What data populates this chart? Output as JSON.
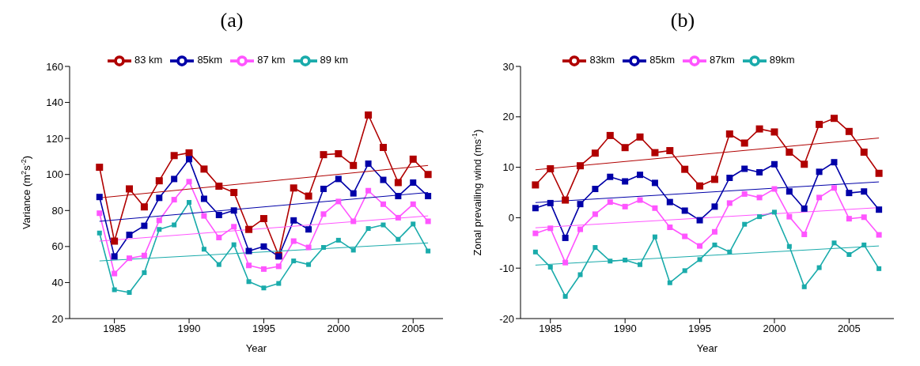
{
  "chart_data": [
    {
      "type": "line",
      "title": "(a)",
      "xlabel": "Year",
      "ylabel": "Variance (m$^{2}$s$^{-2}$)",
      "xlim": [
        1982,
        2007
      ],
      "xticks": [
        1985,
        1990,
        1995,
        2000,
        2005
      ],
      "ylim": [
        20,
        160
      ],
      "yticks": [
        20,
        40,
        60,
        80,
        100,
        120,
        140,
        160
      ],
      "legend": "top",
      "marker": "square",
      "x": [
        1984,
        1985,
        1986,
        1987,
        1988,
        1989,
        1990,
        1991,
        1992,
        1993,
        1994,
        1995,
        1996,
        1997,
        1998,
        1999,
        2000,
        2001,
        2002,
        2003,
        2004,
        2005,
        2006
      ],
      "series": [
        {
          "name": "83 km",
          "color": "#b00000",
          "values": [
            104,
            63,
            92,
            82,
            96.5,
            110.5,
            112,
            103,
            93.5,
            90,
            69.5,
            75.5,
            55,
            92.5,
            88,
            111,
            111.5,
            105,
            133,
            115,
            95.5,
            108.5,
            100
          ]
        },
        {
          "name": "85km",
          "color": "#0000a8",
          "values": [
            87.5,
            54.5,
            66.5,
            71.5,
            87,
            97.5,
            108.5,
            86.5,
            77.5,
            80,
            57.5,
            60,
            54.5,
            74.5,
            69.5,
            92,
            97.5,
            89.5,
            106,
            97,
            88,
            95.5,
            88
          ]
        },
        {
          "name": "87 km",
          "color": "#ff55ff",
          "values": [
            78.5,
            45,
            53.5,
            55,
            74.5,
            86,
            96,
            77,
            65,
            71,
            49.5,
            47.5,
            49,
            63,
            59.5,
            78,
            85,
            74,
            91,
            83.5,
            76,
            83.5,
            74
          ]
        },
        {
          "name": "89 km",
          "color": "#1aabab",
          "values": [
            67.5,
            36,
            34.5,
            45.5,
            69.5,
            72,
            84.5,
            58.5,
            50,
            61,
            40.5,
            37,
            39.5,
            52,
            50,
            59.5,
            63.5,
            58,
            70,
            72,
            64,
            72.5,
            57.5
          ]
        },
        {
          "type": "line",
          "marker": "none",
          "color": "#b00000",
          "x": [
            1984,
            2006
          ],
          "values": [
            87,
            105
          ]
        },
        {
          "type": "line",
          "marker": "none",
          "color": "#0000a8",
          "x": [
            1984,
            2006
          ],
          "values": [
            74,
            90
          ]
        },
        {
          "type": "line",
          "marker": "none",
          "color": "#ff55ff",
          "x": [
            1984,
            2006
          ],
          "values": [
            63,
            77
          ]
        },
        {
          "type": "line",
          "marker": "none",
          "color": "#1aabab",
          "x": [
            1984,
            2006
          ],
          "values": [
            52,
            62
          ]
        }
      ]
    },
    {
      "type": "line",
      "title": "(b)",
      "xlabel": "Year",
      "ylabel": "Zonal prevailing wind (ms$^{-1}$)",
      "xlim": [
        1983,
        2008
      ],
      "xticks": [
        1985,
        1990,
        1995,
        2000,
        2005
      ],
      "ylim": [
        -20,
        30
      ],
      "yticks": [
        -20,
        -10,
        0,
        10,
        20,
        30
      ],
      "legend": "top",
      "marker": "square",
      "x": [
        1984,
        1985,
        1986,
        1987,
        1988,
        1989,
        1990,
        1991,
        1992,
        1993,
        1994,
        1995,
        1996,
        1997,
        1998,
        1999,
        2000,
        2001,
        2002,
        2003,
        2004,
        2005,
        2006,
        2007
      ],
      "series": [
        {
          "name": "83km",
          "color": "#b00000",
          "values": [
            6.5,
            9.7,
            3.5,
            10.3,
            12.8,
            16.3,
            13.9,
            16,
            12.9,
            13.3,
            9.6,
            6.3,
            7.6,
            16.6,
            14.8,
            17.6,
            17,
            13,
            10.6,
            18.5,
            19.7,
            17.1,
            13,
            8.8
          ]
        },
        {
          "name": "85km",
          "color": "#0000a8",
          "values": [
            1.9,
            2.9,
            -4,
            2.7,
            5.7,
            8.1,
            7.2,
            8.5,
            6.9,
            3.1,
            1.4,
            -0.5,
            2.2,
            7.9,
            9.7,
            9,
            10.6,
            5.2,
            1.8,
            9.1,
            11,
            4.9,
            5.2,
            1.6
          ]
        },
        {
          "name": "87km",
          "color": "#ff55ff",
          "values": [
            -3.1,
            -2.1,
            -8.9,
            -2.3,
            0.7,
            3.1,
            2.2,
            3.5,
            1.9,
            -1.9,
            -3.7,
            -5.6,
            -2.8,
            2.9,
            4.7,
            4,
            5.7,
            0.2,
            -3.3,
            4,
            5.9,
            -0.2,
            0.1,
            -3.4
          ]
        },
        {
          "name": "89km",
          "color": "#1aabab",
          "values": [
            -6.8,
            -9.8,
            -15.6,
            -11.3,
            -5.9,
            -8.6,
            -8.4,
            -9.3,
            -3.8,
            -12.9,
            -10.5,
            -8.3,
            -5.4,
            -6.8,
            -1.3,
            0.2,
            1.1,
            -5.7,
            -13.7,
            -9.9,
            -5,
            -7.3,
            -5.4,
            -10.1
          ]
        },
        {
          "type": "line",
          "marker": "none",
          "color": "#b00000",
          "x": [
            1984,
            2007
          ],
          "values": [
            9.5,
            15.8
          ]
        },
        {
          "type": "line",
          "marker": "none",
          "color": "#0000a8",
          "x": [
            1984,
            2007
          ],
          "values": [
            3,
            7.1
          ]
        },
        {
          "type": "line",
          "marker": "none",
          "color": "#ff55ff",
          "x": [
            1984,
            2007
          ],
          "values": [
            -2,
            2
          ]
        },
        {
          "type": "line",
          "marker": "none",
          "color": "#1aabab",
          "x": [
            1984,
            2007
          ],
          "values": [
            -9.4,
            -5.6
          ]
        }
      ]
    }
  ]
}
